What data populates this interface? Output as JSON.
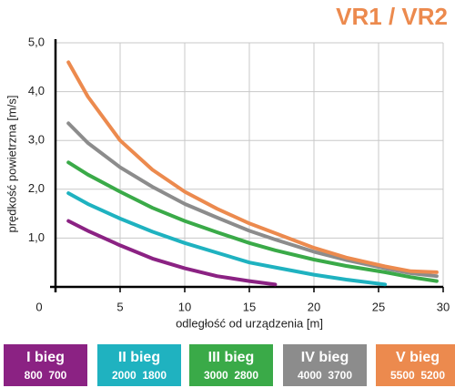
{
  "chart_data": {
    "type": "line",
    "title": "VR1 / VR2",
    "x_label": "odległość od urządzenia [m]",
    "y_label": "prędkość powietrzna [m/s]",
    "x": [
      1,
      2.5,
      5,
      7.5,
      10,
      12.5,
      15,
      17,
      20,
      22.5,
      25.5,
      27.5,
      29.5
    ],
    "xlim": [
      0,
      30
    ],
    "xticks": [
      0,
      5,
      10,
      15,
      20,
      25,
      30
    ],
    "ylim": [
      0,
      5
    ],
    "yticks": [
      {
        "value": 1,
        "label": "1,0"
      },
      {
        "value": 2,
        "label": "2,0"
      },
      {
        "value": 3,
        "label": "3,0"
      },
      {
        "value": 4,
        "label": "4,0"
      },
      {
        "value": 5,
        "label": "5,0"
      }
    ],
    "grid": true,
    "series": [
      {
        "name": "I bieg",
        "detail": "800  700",
        "color": "#8b2283",
        "values": [
          1.35,
          1.15,
          0.85,
          0.58,
          0.38,
          0.22,
          0.12,
          0.05,
          null,
          null,
          null,
          null,
          null
        ]
      },
      {
        "name": "II bieg",
        "detail": "2000  1800",
        "color": "#1fb2c0",
        "values": [
          1.92,
          1.7,
          1.4,
          1.13,
          0.9,
          0.7,
          0.5,
          0.4,
          0.25,
          0.15,
          0.05,
          null,
          null
        ]
      },
      {
        "name": "III bieg",
        "detail": "3000  2800",
        "color": "#3aaa48",
        "values": [
          2.55,
          2.3,
          1.95,
          1.62,
          1.35,
          1.12,
          0.9,
          0.75,
          0.56,
          0.43,
          0.3,
          0.2,
          0.12
        ]
      },
      {
        "name": "IV bieg",
        "detail": "4000  3700",
        "color": "#8c8c8c",
        "values": [
          3.35,
          2.95,
          2.45,
          2.05,
          1.7,
          1.42,
          1.15,
          0.97,
          0.72,
          0.55,
          0.38,
          0.28,
          0.22
        ]
      },
      {
        "name": "V bieg",
        "detail": "5500  5200",
        "color": "#ec8a4e",
        "values": [
          4.6,
          3.9,
          3.0,
          2.4,
          1.95,
          1.6,
          1.3,
          1.1,
          0.8,
          0.6,
          0.42,
          0.32,
          0.3
        ]
      }
    ]
  }
}
